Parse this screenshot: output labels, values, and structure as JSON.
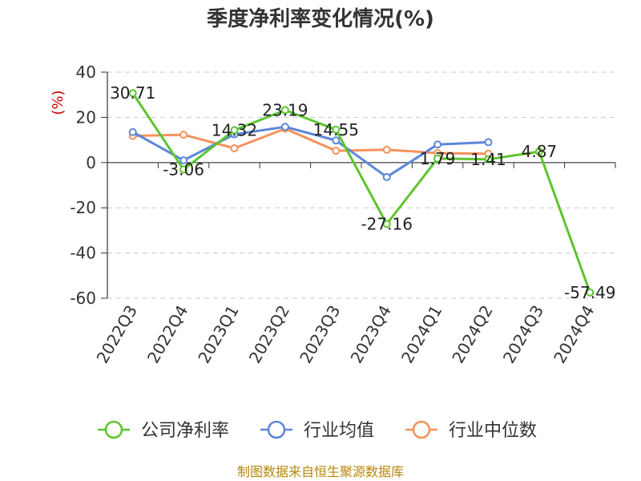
{
  "chart_data": {
    "type": "line",
    "title": "季度净利率变化情况(%)",
    "ylabel": "(%)",
    "xlabel": "",
    "categories": [
      "2022Q3",
      "2022Q4",
      "2023Q1",
      "2023Q2",
      "2023Q3",
      "2023Q4",
      "2024Q1",
      "2024Q2",
      "2024Q3",
      "2024Q4"
    ],
    "ylim": [
      -60,
      40
    ],
    "yticks": [
      40,
      20,
      0,
      -20,
      -40,
      -60
    ],
    "grid": true,
    "legend_position": "bottom",
    "series": [
      {
        "name": "公司净利率",
        "color": "#5cc52e",
        "values": [
          30.71,
          -3.06,
          14.32,
          23.19,
          14.55,
          -27.16,
          1.79,
          1.41,
          4.87,
          -57.49
        ],
        "labels": [
          "30.71",
          "-3.06",
          "14.32",
          "23.19",
          "14.55",
          "-27.16",
          "1.79",
          "1.41",
          "4.87",
          "-57.49"
        ]
      },
      {
        "name": "行业均值",
        "color": "#5b87d9",
        "values": [
          13.5,
          1.0,
          12.5,
          15.8,
          9.8,
          -6.4,
          8.0,
          9.0,
          null,
          null
        ]
      },
      {
        "name": "行业中位数",
        "color": "#f4925b",
        "values": [
          11.8,
          12.3,
          6.3,
          15.0,
          5.2,
          5.7,
          4.2,
          3.9,
          null,
          null
        ]
      }
    ],
    "source": "制图数据来自恒生聚源数据库"
  }
}
